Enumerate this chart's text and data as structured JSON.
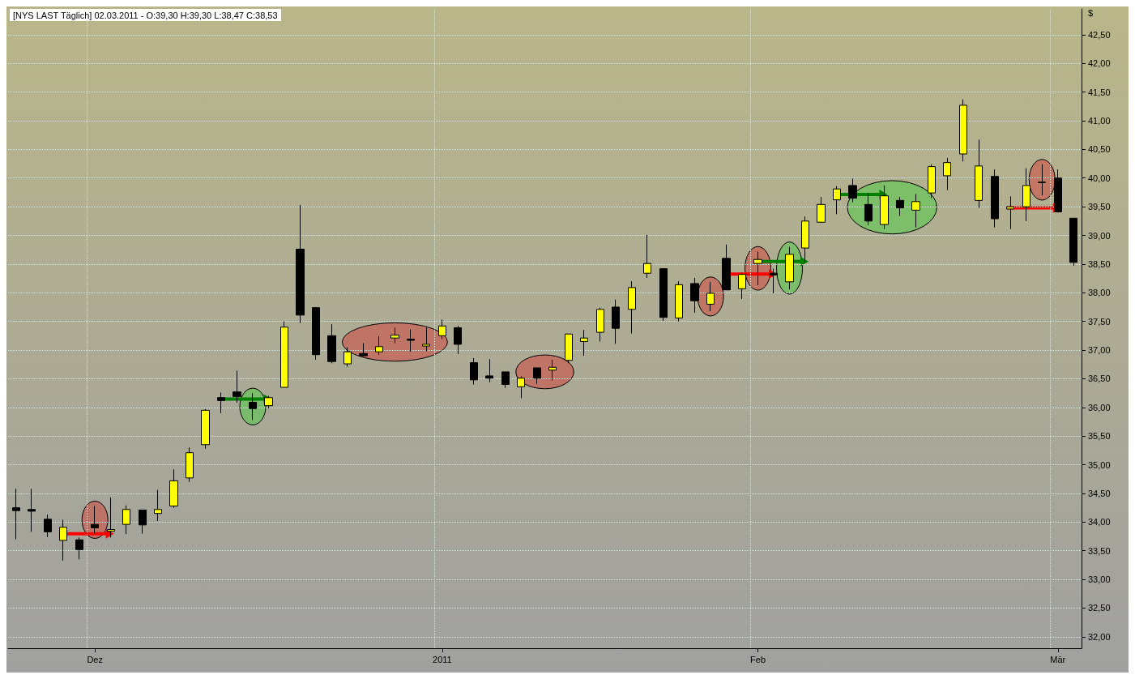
{
  "chart_data": {
    "type": "candlestick",
    "title": "[NYS LAST Täglich] 02.03.2011 - O:39,30 H:39,30 L:38,47 C:38,53",
    "ylabel": "$",
    "categories": [
      null,
      null,
      null,
      null,
      null,
      "Dez",
      null,
      null,
      null,
      null,
      null,
      null,
      null,
      null,
      null,
      null,
      null,
      null,
      null,
      null,
      null,
      null,
      null,
      null,
      null,
      null,
      null,
      "2011",
      null,
      null,
      null,
      null,
      null,
      null,
      null,
      null,
      null,
      null,
      null,
      null,
      null,
      null,
      null,
      null,
      null,
      null,
      null,
      "Feb",
      null,
      null,
      null,
      null,
      null,
      null,
      null,
      null,
      null,
      null,
      null,
      null,
      null,
      null,
      null,
      null,
      null,
      null,
      "Mär",
      null
    ],
    "ohlc": [
      [
        34.25,
        34.58,
        33.7,
        34.2
      ],
      [
        34.22,
        34.58,
        33.83,
        34.19
      ],
      [
        34.05,
        34.13,
        33.74,
        33.83
      ],
      [
        33.68,
        34.04,
        33.33,
        33.91
      ],
      [
        33.69,
        33.73,
        33.35,
        33.52
      ],
      [
        33.96,
        34.28,
        33.8,
        33.9
      ],
      [
        33.84,
        34.43,
        33.73,
        33.87
      ],
      [
        33.96,
        34.29,
        33.79,
        34.22
      ],
      [
        34.21,
        34.21,
        33.8,
        33.95
      ],
      [
        34.15,
        34.56,
        34.02,
        34.22
      ],
      [
        34.28,
        34.92,
        34.25,
        34.72
      ],
      [
        34.77,
        35.3,
        34.7,
        35.21
      ],
      [
        35.35,
        35.97,
        35.28,
        35.95
      ],
      [
        36.17,
        36.26,
        35.9,
        36.12
      ],
      [
        36.27,
        36.64,
        36.08,
        36.19
      ],
      [
        36.09,
        36.25,
        35.78,
        35.98
      ],
      [
        36.03,
        36.2,
        35.98,
        36.17
      ],
      [
        36.35,
        37.5,
        36.35,
        37.4
      ],
      [
        38.76,
        39.53,
        37.47,
        37.61
      ],
      [
        37.74,
        37.74,
        36.83,
        36.92
      ],
      [
        37.25,
        37.45,
        36.77,
        36.8
      ],
      [
        36.76,
        37.05,
        36.71,
        36.97
      ],
      [
        36.94,
        37.12,
        36.89,
        36.9
      ],
      [
        36.97,
        37.24,
        36.92,
        37.06
      ],
      [
        37.21,
        37.39,
        37.12,
        37.26
      ],
      [
        37.19,
        37.36,
        36.97,
        37.17
      ],
      [
        37.07,
        37.39,
        36.98,
        37.1
      ],
      [
        37.25,
        37.53,
        37.19,
        37.42
      ],
      [
        37.39,
        37.42,
        36.93,
        37.1
      ],
      [
        36.78,
        36.86,
        36.4,
        36.48
      ],
      [
        36.55,
        36.84,
        36.44,
        36.51
      ],
      [
        36.62,
        36.62,
        36.34,
        36.4
      ],
      [
        36.36,
        36.54,
        36.16,
        36.51
      ],
      [
        36.69,
        36.69,
        36.41,
        36.51
      ],
      [
        36.65,
        36.83,
        36.47,
        36.7
      ],
      [
        36.82,
        37.28,
        36.77,
        37.28
      ],
      [
        37.15,
        37.35,
        36.9,
        37.21
      ],
      [
        37.31,
        37.74,
        37.15,
        37.71
      ],
      [
        37.75,
        37.88,
        37.11,
        37.38
      ],
      [
        37.71,
        38.2,
        37.29,
        38.09
      ],
      [
        38.34,
        39.01,
        38.26,
        38.51
      ],
      [
        38.42,
        38.42,
        37.51,
        37.57
      ],
      [
        37.56,
        38.2,
        37.5,
        38.14
      ],
      [
        38.16,
        38.26,
        37.65,
        37.86
      ],
      [
        37.8,
        38.19,
        37.68,
        37.99
      ],
      [
        38.6,
        38.84,
        38.05,
        38.05
      ],
      [
        38.07,
        38.35,
        37.89,
        38.32
      ],
      [
        38.51,
        38.72,
        38.13,
        38.58
      ],
      [
        38.34,
        38.42,
        37.99,
        38.31
      ],
      [
        38.19,
        38.8,
        38.06,
        38.67
      ],
      [
        38.78,
        39.33,
        38.52,
        39.25
      ],
      [
        39.23,
        39.67,
        39.22,
        39.54
      ],
      [
        39.62,
        39.86,
        39.37,
        39.81
      ],
      [
        39.87,
        39.99,
        39.58,
        39.65
      ],
      [
        39.54,
        39.74,
        39.18,
        39.25
      ],
      [
        39.19,
        39.87,
        39.11,
        39.69
      ],
      [
        39.61,
        39.67,
        39.34,
        39.48
      ],
      [
        39.44,
        39.72,
        39.14,
        39.59
      ],
      [
        39.74,
        40.24,
        39.65,
        40.2
      ],
      [
        40.04,
        40.35,
        39.79,
        40.27
      ],
      [
        40.42,
        41.37,
        40.29,
        41.27
      ],
      [
        39.61,
        40.67,
        39.48,
        40.21
      ],
      [
        40.03,
        40.15,
        39.14,
        39.29
      ],
      [
        39.46,
        39.68,
        39.11,
        39.5
      ],
      [
        39.5,
        40.17,
        39.25,
        39.87
      ],
      [
        39.92,
        40.24,
        39.7,
        39.93
      ],
      [
        40.0,
        40.15,
        39.4,
        39.41
      ],
      [
        39.3,
        39.3,
        38.47,
        38.53
      ]
    ],
    "colors": [
      "#000000",
      "#000000",
      "#000000",
      "#ffff00",
      "#000000",
      "#000000",
      "#ffff00",
      "#ffff00",
      "#000000",
      "#ffff00",
      "#ffff00",
      "#ffff00",
      "#ffff00",
      "#000000",
      "#000000",
      "#000000",
      "#ffff00",
      "#ffff00",
      "#000000",
      "#000000",
      "#000000",
      "#ffff00",
      "#000000",
      "#ffff00",
      "#ffff00",
      "#000000",
      "#ffff00",
      "#ffff00",
      "#000000",
      "#000000",
      "#000000",
      "#000000",
      "#ffff00",
      "#000000",
      "#ffff00",
      "#ffff00",
      "#ffff00",
      "#ffff00",
      "#000000",
      "#ffff00",
      "#ffff00",
      "#000000",
      "#ffff00",
      "#000000",
      "#ffff00",
      "#000000",
      "#ffff00",
      "#ffff00",
      "#000000",
      "#ffff00",
      "#ffff00",
      "#ffff00",
      "#ffff00",
      "#000000",
      "#000000",
      "#ffff00",
      "#000000",
      "#ffff00",
      "#ffff00",
      "#ffff00",
      "#ffff00",
      "#ffff00",
      "#000000",
      "#ffff00",
      "#ffff00",
      "#ffff00",
      "#000000",
      "#000000"
    ],
    "ylim": [
      31.8,
      42.95
    ],
    "yticks": [
      {
        "value": 32,
        "label": "32,00"
      },
      {
        "value": 32.5,
        "label": "32,50"
      },
      {
        "value": 33,
        "label": "33,00"
      },
      {
        "value": 33.5,
        "label": "33,50"
      },
      {
        "value": 34,
        "label": "34,00"
      },
      {
        "value": 34.5,
        "label": "34,50"
      },
      {
        "value": 35,
        "label": "35,00"
      },
      {
        "value": 35.5,
        "label": "35,50"
      },
      {
        "value": 36,
        "label": "36,00"
      },
      {
        "value": 36.5,
        "label": "36,50"
      },
      {
        "value": 37,
        "label": "37,00"
      },
      {
        "value": 37.5,
        "label": "37,50"
      },
      {
        "value": 38,
        "label": "38,00"
      },
      {
        "value": 38.5,
        "label": "38,50"
      },
      {
        "value": 39,
        "label": "39,00"
      },
      {
        "value": 39.5,
        "label": "39,50"
      },
      {
        "value": 40,
        "label": "40,00"
      },
      {
        "value": 40.5,
        "label": "40,50"
      },
      {
        "value": 41,
        "label": "41,00"
      },
      {
        "value": 41.5,
        "label": "41,50"
      },
      {
        "value": 42,
        "label": "42,00"
      },
      {
        "value": 42.5,
        "label": "42,50"
      }
    ],
    "grid": true
  }
}
